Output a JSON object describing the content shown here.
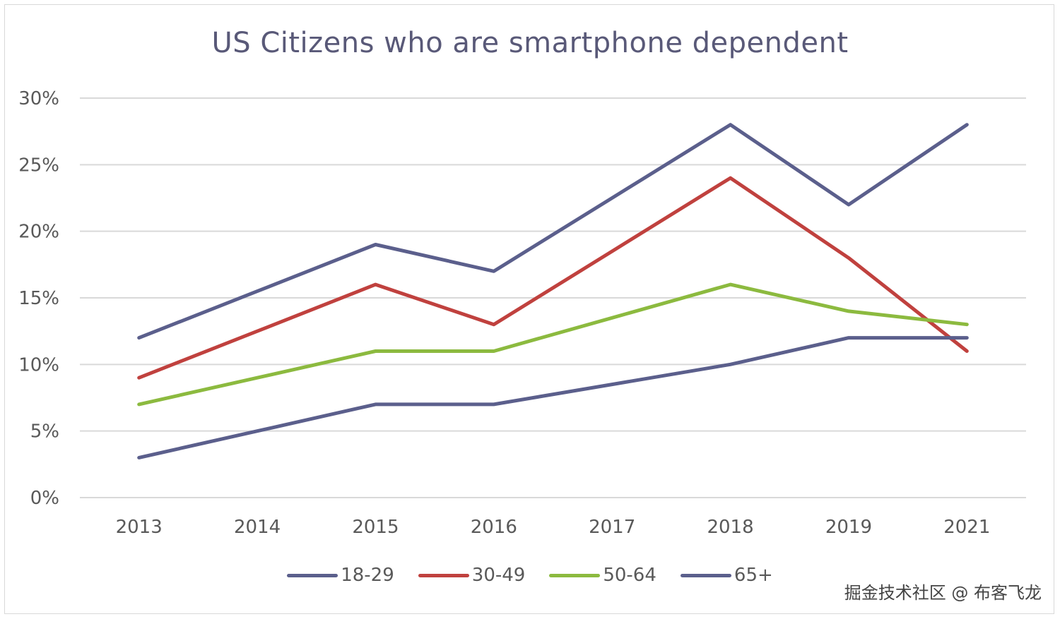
{
  "watermark": "掘金技术社区 @ 布客飞龙",
  "chart_data": {
    "type": "line",
    "title": "US Citizens who are smartphone dependent",
    "xlabel": "",
    "ylabel": "",
    "categories": [
      "2013",
      "2014",
      "2015",
      "2016",
      "2017",
      "2018",
      "2019",
      "2021"
    ],
    "ylim": [
      0,
      30
    ],
    "yticks": [
      0,
      5,
      10,
      15,
      20,
      25,
      30
    ],
    "ytick_labels": [
      "0%",
      "5%",
      "10%",
      "15%",
      "20%",
      "25%",
      "30%"
    ],
    "grid": true,
    "legend_position": "bottom",
    "series": [
      {
        "name": "18-29",
        "color": "#5b5f8c",
        "values": [
          12,
          15.5,
          19,
          17,
          22.5,
          28,
          22,
          28
        ]
      },
      {
        "name": "30-49",
        "color": "#c0413e",
        "values": [
          9,
          12.5,
          16,
          13,
          18.5,
          24,
          18,
          11
        ]
      },
      {
        "name": "50-64",
        "color": "#8cba3f",
        "values": [
          7,
          9,
          11,
          11,
          13.5,
          16,
          14,
          13
        ]
      },
      {
        "name": "65+",
        "color": "#5b5f8c",
        "values": [
          3,
          5,
          7,
          7,
          8.5,
          10,
          12,
          12
        ]
      }
    ]
  }
}
